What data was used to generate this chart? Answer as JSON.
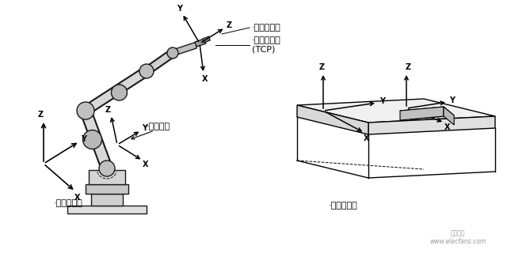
{
  "bg_color": "#ffffff",
  "text_color": "#000000",
  "fig_width": 6.4,
  "fig_height": 3.25,
  "dpi": 100,
  "labels": {
    "tool_coord": "工具坐标系",
    "tcp": "工具中心点\n(TCP)",
    "base_coord": "基坐标系",
    "world_coord": "大地坐标系",
    "work_coord": "工件坐标系"
  },
  "watermark_line1": "电子发玉",
  "watermark_line2": "www.elecfans.com",
  "font_size_label": 8,
  "font_size_axis": 7,
  "font_size_watermark": 5.5
}
